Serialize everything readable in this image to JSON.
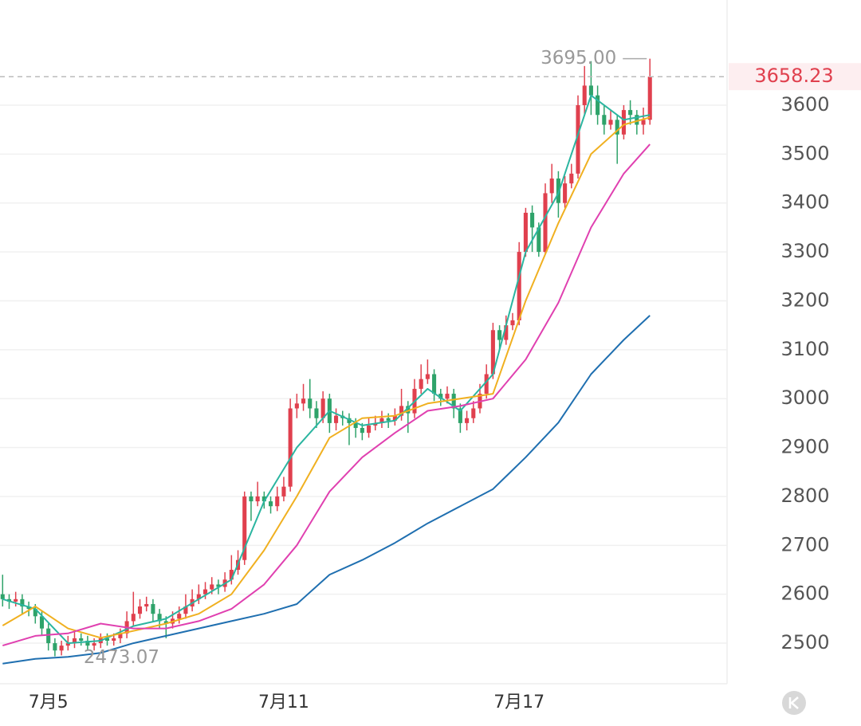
{
  "chart_data": {
    "type": "candlestick",
    "xlim": [
      -0.4,
      110.8
    ],
    "xticks": [
      {
        "value": 7,
        "label": "7月5"
      },
      {
        "value": 43,
        "label": "7月11"
      },
      {
        "value": 79,
        "label": "7月17"
      }
    ],
    "ylim": [
      2417,
      3815
    ],
    "yticks": [
      2500,
      2600,
      2700,
      2800,
      2900,
      3000,
      3100,
      3200,
      3300,
      3400,
      3500,
      3600
    ],
    "grid": true,
    "up_color": "#e0404e",
    "down_color": "#2fa36a",
    "open": [
      2600,
      2590,
      2585,
      2590,
      2575,
      2570,
      2555,
      2530,
      2500,
      2485,
      2495,
      2500,
      2510,
      2505,
      2495,
      2500,
      2510,
      2505,
      2510,
      2520,
      2545,
      2560,
      2575,
      2580,
      2560,
      2545,
      2540,
      2550,
      2560,
      2575,
      2590,
      2600,
      2610,
      2620,
      2615,
      2630,
      2650,
      2670,
      2800,
      2790,
      2800,
      2790,
      2780,
      2800,
      2820,
      2980,
      2990,
      3000,
      2980,
      2960,
      3000,
      2950,
      2965,
      2960,
      2950,
      2940,
      2930,
      2945,
      2950,
      2960,
      2955,
      2965,
      2985,
      2970,
      3020,
      3040,
      3050,
      3010,
      3000,
      3010,
      2980,
      2950,
      2960,
      2980,
      3010,
      3050,
      3140,
      3120,
      3150,
      3160,
      3300,
      3380,
      3350,
      3300,
      3420,
      3450,
      3400,
      3440,
      3460,
      3600,
      3640,
      3620,
      3580,
      3560,
      3570,
      3540,
      3590,
      3580,
      3560,
      3570
    ],
    "high": [
      2640,
      2600,
      2605,
      2600,
      2585,
      2580,
      2565,
      2540,
      2510,
      2505,
      2515,
      2525,
      2520,
      2515,
      2510,
      2520,
      2520,
      2520,
      2530,
      2565,
      2605,
      2590,
      2595,
      2590,
      2570,
      2555,
      2565,
      2575,
      2600,
      2610,
      2620,
      2625,
      2635,
      2630,
      2645,
      2680,
      2690,
      2810,
      2810,
      2830,
      2810,
      2800,
      2820,
      2840,
      3000,
      3010,
      3030,
      3040,
      2995,
      3015,
      3010,
      2980,
      2975,
      2970,
      2960,
      2950,
      2960,
      2965,
      2975,
      2970,
      2980,
      3020,
      2995,
      3040,
      3070,
      3080,
      3060,
      3020,
      3025,
      3020,
      2990,
      2975,
      2995,
      3030,
      3070,
      3155,
      3150,
      3170,
      3175,
      3320,
      3390,
      3395,
      3360,
      3440,
      3480,
      3465,
      3455,
      3480,
      3620,
      3680,
      3690,
      3640,
      3600,
      3590,
      3580,
      3600,
      3610,
      3590,
      3595,
      3695
    ],
    "low": [
      2575,
      2570,
      2575,
      2560,
      2555,
      2540,
      2515,
      2485,
      2473.07,
      2475,
      2485,
      2490,
      2495,
      2485,
      2485,
      2490,
      2495,
      2495,
      2500,
      2510,
      2535,
      2550,
      2565,
      2545,
      2530,
      2510,
      2530,
      2540,
      2550,
      2565,
      2580,
      2590,
      2600,
      2600,
      2605,
      2620,
      2640,
      2660,
      2750,
      2780,
      2775,
      2765,
      2770,
      2790,
      2810,
      2960,
      2975,
      2960,
      2940,
      2950,
      2930,
      2935,
      2945,
      2905,
      2920,
      2915,
      2920,
      2935,
      2940,
      2940,
      2945,
      2955,
      2930,
      2960,
      3010,
      3030,
      2995,
      2985,
      2990,
      2960,
      2930,
      2935,
      2950,
      2970,
      3000,
      3040,
      3100,
      3110,
      3140,
      3150,
      3290,
      3300,
      3290,
      3295,
      3400,
      3370,
      3390,
      3430,
      3450,
      3580,
      3580,
      3560,
      3540,
      3550,
      3480,
      3530,
      3560,
      3540,
      3540,
      3560
    ],
    "close": [
      2590,
      2585,
      2590,
      2575,
      2570,
      2555,
      2530,
      2500,
      2485,
      2495,
      2500,
      2510,
      2505,
      2495,
      2500,
      2510,
      2505,
      2510,
      2520,
      2545,
      2560,
      2575,
      2580,
      2560,
      2545,
      2540,
      2550,
      2560,
      2575,
      2590,
      2600,
      2610,
      2620,
      2615,
      2630,
      2650,
      2670,
      2800,
      2790,
      2800,
      2790,
      2780,
      2800,
      2820,
      2980,
      2990,
      3000,
      2980,
      2960,
      3000,
      2950,
      2965,
      2960,
      2950,
      2940,
      2930,
      2945,
      2950,
      2960,
      2955,
      2965,
      2985,
      2970,
      3020,
      3040,
      3050,
      3010,
      3000,
      3010,
      2980,
      2950,
      2960,
      2980,
      3010,
      3050,
      3140,
      3120,
      3150,
      3160,
      3300,
      3380,
      3350,
      3300,
      3420,
      3450,
      3400,
      3440,
      3460,
      3600,
      3640,
      3620,
      3580,
      3560,
      3570,
      3540,
      3590,
      3580,
      3560,
      3570,
      3658.23
    ],
    "lines_x": [
      0,
      5,
      10,
      15,
      20,
      25,
      30,
      35,
      40,
      45,
      50,
      55,
      60,
      65,
      70,
      75,
      80,
      85,
      90,
      95,
      99
    ],
    "series": [
      {
        "color": "#2bb5a0",
        "values": [
          2590,
          2570,
          2500,
          2505,
          2535,
          2550,
          2590,
          2630,
          2790,
          2900,
          2975,
          2945,
          2955,
          3020,
          2975,
          3050,
          3300,
          3420,
          3620,
          3570,
          3580
        ]
      },
      {
        "color": "#f0b020",
        "values": [
          2536,
          2575,
          2530,
          2511,
          2525,
          2540,
          2560,
          2600,
          2690,
          2800,
          2920,
          2960,
          2965,
          2990,
          3000,
          3010,
          3200,
          3359,
          3500,
          3560,
          3575
        ]
      },
      {
        "color": "#e040b0",
        "values": [
          2495,
          2515,
          2520,
          2540,
          2530,
          2530,
          2545,
          2570,
          2620,
          2700,
          2810,
          2880,
          2930,
          2975,
          2985,
          3000,
          3080,
          3196,
          3350,
          3460,
          3520
        ]
      },
      {
        "color": "#1f6fb0",
        "values": [
          2458,
          2468,
          2472,
          2480,
          2500,
          2515,
          2530,
          2545,
          2560,
          2580,
          2640,
          2670,
          2705,
          2745,
          2780,
          2815,
          2880,
          2951,
          3050,
          3120,
          3170
        ]
      }
    ],
    "last_price": 3658.23,
    "max_label": {
      "value": 3695,
      "label": "3695.00"
    },
    "min_label": {
      "value": 2473.07,
      "label": "2473.07"
    }
  }
}
